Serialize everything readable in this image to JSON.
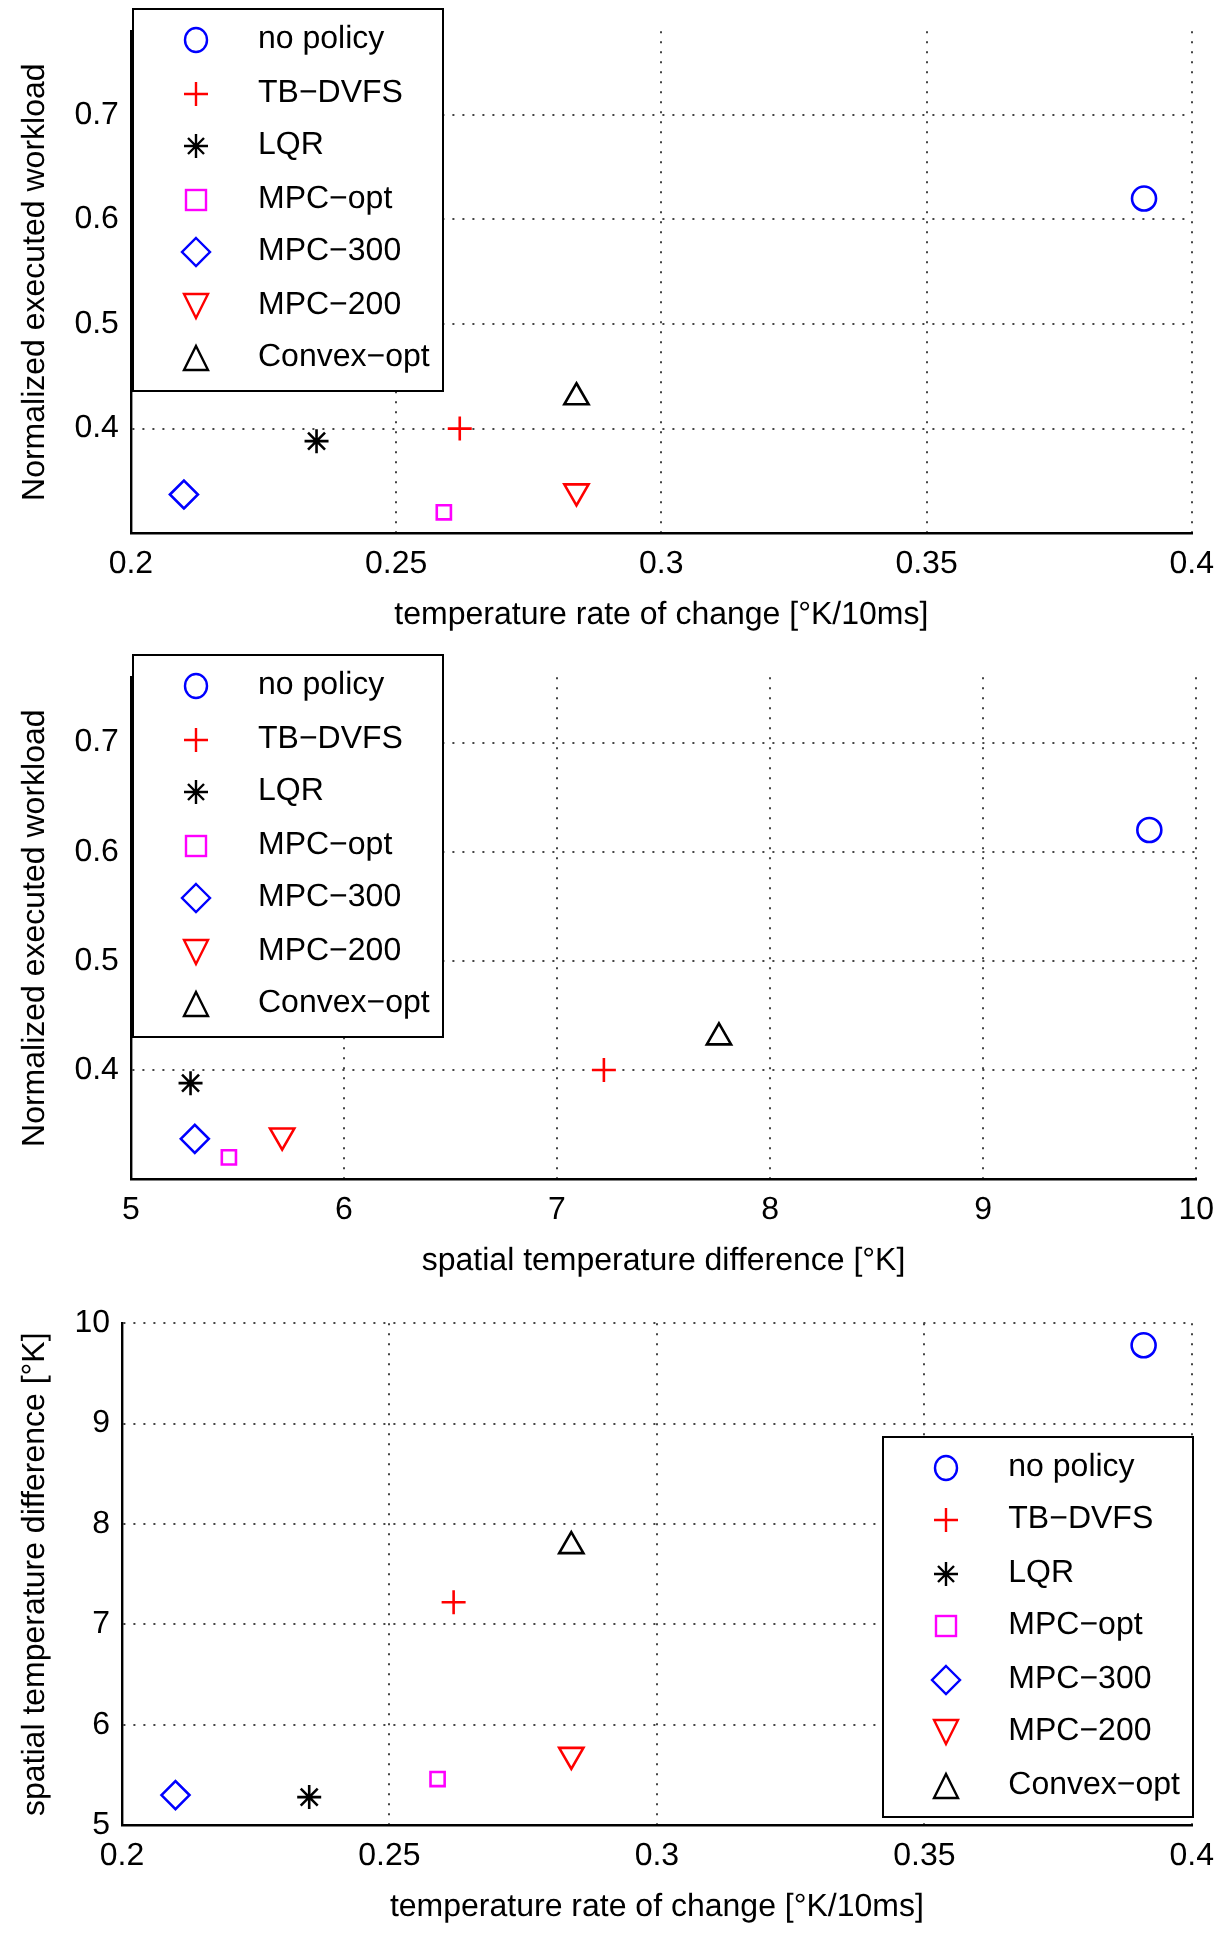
{
  "chart_data": [
    {
      "type": "scatter",
      "xlabel": "temperature rate of change [°K/10ms]",
      "ylabel": "Normalized executed workload",
      "xlim": [
        0.2,
        0.4
      ],
      "xticks": [
        0.2,
        0.25,
        0.3,
        0.35,
        0.4
      ],
      "ylim": [
        0.3,
        0.78
      ],
      "yticks": [
        0.4,
        0.5,
        0.6,
        0.7
      ],
      "grid": true,
      "legend": "top left",
      "series": [
        {
          "name": "no policy",
          "color": "#0000ff",
          "marker": "circle",
          "x": [
            0.391
          ],
          "values": [
            0.62
          ]
        },
        {
          "name": "TB−DVFS",
          "color": "#ff0000",
          "marker": "cross",
          "x": [
            0.262
          ],
          "values": [
            0.4
          ]
        },
        {
          "name": "LQR",
          "color": "#000000",
          "x": [
            0.235
          ],
          "values": [
            0.388
          ]
        },
        {
          "name": "MPC−opt",
          "color": "#ff00ff",
          "marker": "square",
          "x": [
            0.259
          ],
          "values": [
            0.32
          ]
        },
        {
          "name": "MPC−300",
          "color": "#0000ff",
          "marker": "diamond",
          "x": [
            0.21
          ],
          "values": [
            0.337
          ]
        },
        {
          "name": "MPC−200",
          "color": "#ff0000",
          "marker": "triangle-down",
          "x": [
            0.284
          ],
          "values": [
            0.34
          ]
        },
        {
          "name": "Convex−opt",
          "color": "#000000",
          "marker": "triangle",
          "x": [
            0.284
          ],
          "values": [
            0.43
          ]
        }
      ]
    },
    {
      "type": "scatter",
      "xlabel": "spatial temperature difference [°K]",
      "ylabel": "Normalized executed workload",
      "xlim": [
        5,
        10
      ],
      "xticks": [
        5,
        6,
        7,
        8,
        9,
        10
      ],
      "ylim": [
        0.3,
        0.76
      ],
      "yticks": [
        0.4,
        0.5,
        0.6,
        0.7
      ],
      "grid": true,
      "legend": "top left",
      "series": [
        {
          "name": "no policy",
          "color": "#0000ff",
          "marker": "circle",
          "x": [
            9.78
          ],
          "values": [
            0.62
          ]
        },
        {
          "name": "TB−DVFS",
          "color": "#ff0000",
          "marker": "cross",
          "x": [
            7.22
          ],
          "values": [
            0.4
          ]
        },
        {
          "name": "LQR",
          "color": "#000000",
          "x": [
            5.28
          ],
          "values": [
            0.388
          ]
        },
        {
          "name": "MPC−opt",
          "color": "#ff00ff",
          "marker": "square",
          "x": [
            5.46
          ],
          "values": [
            0.32
          ]
        },
        {
          "name": "MPC−300",
          "color": "#0000ff",
          "marker": "diamond",
          "x": [
            5.3
          ],
          "values": [
            0.337
          ]
        },
        {
          "name": "MPC−200",
          "color": "#ff0000",
          "marker": "triangle-down",
          "x": [
            5.71
          ],
          "values": [
            0.34
          ]
        },
        {
          "name": "Convex−opt",
          "color": "#000000",
          "marker": "triangle",
          "x": [
            7.76
          ],
          "values": [
            0.43
          ]
        }
      ]
    },
    {
      "type": "scatter",
      "xlabel": "temperature rate of change [°K/10ms]",
      "ylabel": "spatial temperature difference [°K]",
      "xlim": [
        0.2,
        0.4
      ],
      "xticks": [
        0.2,
        0.25,
        0.3,
        0.35,
        0.4
      ],
      "ylim": [
        5,
        10
      ],
      "yticks": [
        5,
        6,
        7,
        8,
        9,
        10
      ],
      "grid": true,
      "legend": "bottom right",
      "series": [
        {
          "name": "no policy",
          "color": "#0000ff",
          "marker": "circle",
          "x": [
            0.391
          ],
          "values": [
            9.78
          ]
        },
        {
          "name": "TB−DVFS",
          "color": "#ff0000",
          "marker": "cross",
          "x": [
            0.262
          ],
          "values": [
            7.22
          ]
        },
        {
          "name": "LQR",
          "color": "#000000",
          "x": [
            0.235
          ],
          "values": [
            5.28
          ]
        },
        {
          "name": "MPC−opt",
          "color": "#ff00ff",
          "marker": "square",
          "x": [
            0.259
          ],
          "values": [
            5.46
          ]
        },
        {
          "name": "MPC−300",
          "color": "#0000ff",
          "marker": "diamond",
          "x": [
            0.21
          ],
          "values": [
            5.3
          ]
        },
        {
          "name": "MPC−200",
          "color": "#ff0000",
          "marker": "triangle-down",
          "x": [
            0.284
          ],
          "values": [
            5.7
          ]
        },
        {
          "name": "Convex−opt",
          "color": "#000000",
          "marker": "triangle",
          "x": [
            0.284
          ],
          "values": [
            7.78
          ]
        }
      ]
    }
  ]
}
